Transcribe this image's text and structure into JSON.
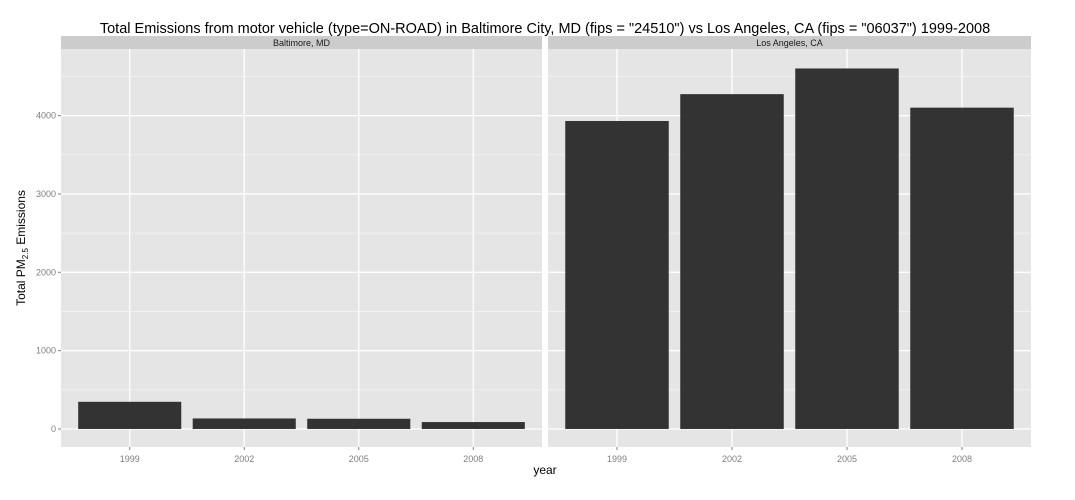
{
  "chart_data": {
    "type": "bar",
    "title": "Total Emissions from motor vehicle (type=ON-ROAD) in Baltimore City, MD (fips = \"24510\") vs Los Angeles, CA (fips = \"06037\")  1999-2008",
    "xlabel": "year",
    "ylabel": {
      "prefix": "Total PM",
      "subscript": "2.5",
      "suffix": " Emissions"
    },
    "ylim": [
      -230,
      4850
    ],
    "y_ticks": [
      0,
      1000,
      2000,
      3000,
      4000
    ],
    "y_tick_labels": [
      "0",
      "1000",
      "2000",
      "3000",
      "4000"
    ],
    "grid": true,
    "facets": [
      {
        "name": "Baltimore, MD",
        "categories": [
          "1999",
          "2002",
          "2005",
          "2008"
        ],
        "values": [
          346.8,
          134.3,
          130.4,
          88.3
        ]
      },
      {
        "name": "Los Angeles, CA",
        "categories": [
          "1999",
          "2002",
          "2005",
          "2008"
        ],
        "values": [
          3931.1,
          4274.0,
          4601.4,
          4101.3
        ]
      }
    ],
    "colors": {
      "bar": "#333333",
      "panel": "#e5e5e5",
      "strip": "#cccccc",
      "grid_major": "#ffffff",
      "grid_minor": "#f2f2f2"
    }
  }
}
